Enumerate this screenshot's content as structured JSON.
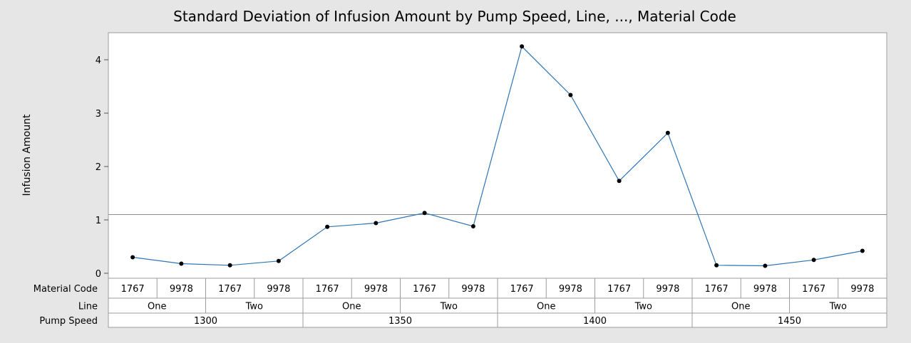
{
  "chart_data": {
    "type": "line",
    "title": "Standard Deviation of Infusion Amount by Pump Speed, Line, ..., Material Code",
    "ylabel": "Infusion Amount",
    "ylim": [
      -0.1,
      4.5
    ],
    "yticks": [
      0,
      1,
      2,
      3,
      4
    ],
    "reference_line": 1.1,
    "row_labels": {
      "material": "Material Code",
      "line": "Line",
      "pump": "Pump Speed"
    },
    "material_codes": [
      "1767",
      "9978",
      "1767",
      "9978",
      "1767",
      "9978",
      "1767",
      "9978",
      "1767",
      "9978",
      "1767",
      "9978",
      "1767",
      "9978",
      "1767",
      "9978"
    ],
    "lines": [
      "One",
      "Two",
      "One",
      "Two",
      "One",
      "Two",
      "One",
      "Two"
    ],
    "pump_speeds": [
      "1300",
      "1350",
      "1400",
      "1450"
    ],
    "values": [
      0.3,
      0.18,
      0.15,
      0.23,
      0.87,
      0.94,
      1.13,
      0.88,
      4.25,
      3.34,
      1.73,
      2.63,
      0.15,
      0.14,
      0.25,
      0.42
    ],
    "colors": {
      "line": "#2e75b6",
      "marker": "#000000",
      "reference": "#8c8c8c",
      "plot_bg": "#ffffff",
      "page_bg": "#e6e6e6"
    }
  }
}
